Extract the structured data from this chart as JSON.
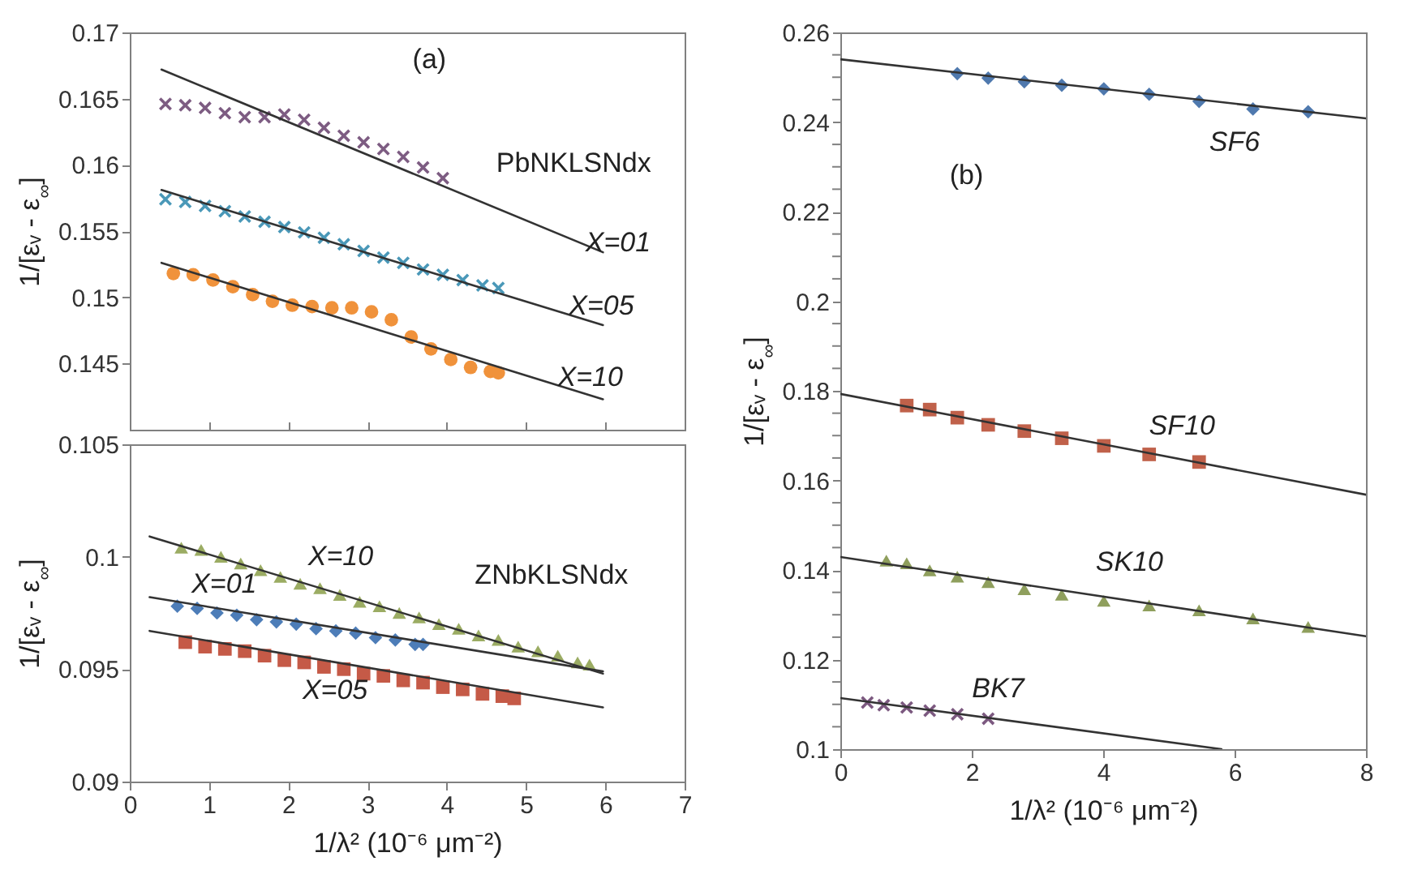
{
  "chart_data": [
    {
      "type": "scatter",
      "title": "(a)",
      "ylabel": "1/[εᵥ - ε$_{∞}$]",
      "xlim": [
        0,
        7
      ],
      "xticks": [
        0,
        1,
        2,
        3,
        4,
        5,
        6,
        7
      ],
      "ylim": [
        0.14,
        0.17
      ],
      "yticks": [
        0.145,
        0.15,
        0.155,
        0.16,
        0.165,
        0.17
      ],
      "tick_labels": "y",
      "annotations": [
        "PbNKLSNdx",
        "X=01",
        "X=05",
        "X=10"
      ],
      "series": [
        {
          "type": "scatter",
          "marker": "cross",
          "color": "#7d5c82",
          "x": [
            0.45,
            0.7,
            0.95,
            1.2,
            1.45,
            1.7,
            1.95,
            2.2,
            2.45,
            2.7,
            2.95,
            3.2,
            3.45,
            3.7,
            3.95
          ],
          "values": [
            0.1646,
            0.1645,
            0.1643,
            0.1639,
            0.1636,
            0.1636,
            0.1638,
            0.1634,
            0.1628,
            0.1622,
            0.1617,
            0.1612,
            0.1606,
            0.1598,
            0.159
          ]
        },
        {
          "type": "line",
          "color": "#333333",
          "x": [
            0.4,
            5.97
          ],
          "values": [
            0.1672,
            0.1534
          ]
        },
        {
          "type": "scatter",
          "marker": "cross",
          "color": "#4a98b8",
          "x": [
            0.45,
            0.7,
            0.95,
            1.2,
            1.45,
            1.7,
            1.95,
            2.2,
            2.45,
            2.7,
            2.95,
            3.2,
            3.45,
            3.7,
            3.95,
            4.2,
            4.45,
            4.65
          ],
          "values": [
            0.1574,
            0.1572,
            0.1569,
            0.1565,
            0.1561,
            0.1557,
            0.1553,
            0.1549,
            0.1545,
            0.154,
            0.1535,
            0.153,
            0.1526,
            0.1521,
            0.1517,
            0.1513,
            0.1509,
            0.1507
          ]
        },
        {
          "type": "line",
          "color": "#333333",
          "x": [
            0.4,
            5.97
          ],
          "values": [
            0.1581,
            0.1479
          ]
        },
        {
          "type": "scatter",
          "marker": "circle",
          "color": "#f0923b",
          "x": [
            0.55,
            0.8,
            1.05,
            1.3,
            1.55,
            1.8,
            2.05,
            2.3,
            2.55,
            2.8,
            3.05,
            3.3,
            3.55,
            3.8,
            4.05,
            4.3,
            4.55,
            4.65
          ],
          "values": [
            0.1518,
            0.1517,
            0.1513,
            0.1508,
            0.1502,
            0.1497,
            0.1494,
            0.1493,
            0.1492,
            0.1492,
            0.1489,
            0.1483,
            0.147,
            0.1461,
            0.1453,
            0.1447,
            0.1444,
            0.1443
          ]
        },
        {
          "type": "line",
          "color": "#333333",
          "x": [
            0.4,
            5.97
          ],
          "values": [
            0.1526,
            0.1423
          ]
        }
      ]
    },
    {
      "type": "scatter",
      "ylabel": "1/[εᵥ - ε$_{∞}$]",
      "xlabel": "1/λ² (10⁻⁶ μm⁻²)",
      "xlim": [
        0,
        7
      ],
      "xticks": [
        0,
        1,
        2,
        3,
        4,
        5,
        6,
        7
      ],
      "ylim": [
        0.09,
        0.105
      ],
      "yticks": [
        0.09,
        0.095,
        0.1,
        0.105
      ],
      "annotations": [
        "ZNbKLSNdx",
        "X=10",
        "X=01",
        "X=05"
      ],
      "series": [
        {
          "type": "scatter",
          "marker": "triangle",
          "color": "#9bac63",
          "x": [
            0.65,
            0.9,
            1.15,
            1.4,
            1.65,
            1.9,
            2.15,
            2.4,
            2.65,
            2.9,
            3.15,
            3.4,
            3.65,
            3.9,
            4.15,
            4.4,
            4.65,
            4.9,
            5.15,
            5.4,
            5.65,
            5.8
          ],
          "values": [
            0.1004,
            0.1003,
            0.1,
            0.0997,
            0.0994,
            0.0991,
            0.0988,
            0.0986,
            0.0983,
            0.098,
            0.0978,
            0.0975,
            0.0973,
            0.097,
            0.0968,
            0.0965,
            0.0963,
            0.096,
            0.0958,
            0.0956,
            0.0953,
            0.0952
          ]
        },
        {
          "type": "line",
          "color": "#333333",
          "x": [
            0.25,
            5.97
          ],
          "values": [
            0.1009,
            0.0948
          ]
        },
        {
          "type": "scatter",
          "marker": "diamond",
          "color": "#4d7db8",
          "x": [
            0.6,
            0.85,
            1.1,
            1.35,
            1.6,
            1.85,
            2.1,
            2.35,
            2.6,
            2.85,
            3.1,
            3.35,
            3.6,
            3.7
          ],
          "values": [
            0.0978,
            0.0977,
            0.0975,
            0.0974,
            0.0972,
            0.0971,
            0.097,
            0.0968,
            0.0967,
            0.0966,
            0.0964,
            0.0963,
            0.0961,
            0.0961
          ]
        },
        {
          "type": "line",
          "color": "#333333",
          "x": [
            0.25,
            5.97
          ],
          "values": [
            0.0982,
            0.0949
          ]
        },
        {
          "type": "scatter",
          "marker": "square",
          "color": "#c55a47",
          "x": [
            0.7,
            0.95,
            1.2,
            1.45,
            1.7,
            1.95,
            2.2,
            2.45,
            2.7,
            2.95,
            3.2,
            3.45,
            3.7,
            3.95,
            4.2,
            4.45,
            4.7,
            4.85
          ],
          "values": [
            0.0962,
            0.096,
            0.0959,
            0.0958,
            0.0956,
            0.0954,
            0.0953,
            0.0951,
            0.095,
            0.0948,
            0.0947,
            0.0945,
            0.0944,
            0.0942,
            0.0941,
            0.0939,
            0.0938,
            0.0937
          ]
        },
        {
          "type": "line",
          "color": "#333333",
          "x": [
            0.25,
            5.97
          ],
          "values": [
            0.0967,
            0.0933
          ]
        }
      ]
    },
    {
      "type": "scatter",
      "title": "(b)",
      "ylabel": "1/[εᵥ - ε$_{∞}$]",
      "xlabel": "1/λ² (10⁻⁶ μm⁻²)",
      "xlim": [
        0,
        8
      ],
      "xticks": [
        0,
        2,
        4,
        6,
        8
      ],
      "ylim": [
        0.1,
        0.26
      ],
      "yticks": [
        0.1,
        {
          "value": 0.105,
          "label": null
        },
        {
          "value": 0.11,
          "label": null
        },
        {
          "value": 0.115,
          "label": null
        },
        0.12,
        {
          "value": 0.125,
          "label": null
        },
        {
          "value": 0.13,
          "label": null
        },
        {
          "value": 0.135,
          "label": null
        },
        0.14,
        {
          "value": 0.145,
          "label": null
        },
        {
          "value": 0.15,
          "label": null
        },
        {
          "value": 0.155,
          "label": null
        },
        0.16,
        {
          "value": 0.165,
          "label": null
        },
        {
          "value": 0.17,
          "label": null
        },
        {
          "value": 0.175,
          "label": null
        },
        0.18,
        {
          "value": 0.185,
          "label": null
        },
        {
          "value": 0.19,
          "label": null
        },
        {
          "value": 0.195,
          "label": null
        },
        0.2,
        {
          "value": 0.205,
          "label": null
        },
        {
          "value": 0.21,
          "label": null
        },
        {
          "value": 0.215,
          "label": null
        },
        0.22,
        {
          "value": 0.225,
          "label": null
        },
        {
          "value": 0.23,
          "label": null
        },
        {
          "value": 0.235,
          "label": null
        },
        0.24,
        {
          "value": 0.245,
          "label": null
        },
        {
          "value": 0.25,
          "label": null
        },
        {
          "value": 0.255,
          "label": null
        },
        0.26
      ],
      "annotations": [
        "SF6",
        "SF10",
        "SK10",
        "BK7"
      ],
      "series": [
        {
          "type": "scatter",
          "marker": "diamond",
          "color": "#4f79ae",
          "x": [
            1.78,
            2.25,
            2.8,
            3.37,
            4.01,
            4.7,
            5.46,
            6.28,
            7.12
          ],
          "values": [
            0.2508,
            0.2498,
            0.249,
            0.2482,
            0.2474,
            0.2462,
            0.2446,
            0.2429,
            0.2423
          ]
        },
        {
          "type": "line",
          "color": "#333333",
          "x": [
            0,
            8
          ],
          "values": [
            0.254,
            0.2408
          ]
        },
        {
          "type": "scatter",
          "marker": "square",
          "color": "#c0614a",
          "x": [
            1.01,
            1.36,
            1.78,
            2.25,
            2.8,
            3.37,
            4.01,
            4.7,
            5.46
          ],
          "values": [
            0.1767,
            0.1758,
            0.174,
            0.1724,
            0.171,
            0.1694,
            0.1677,
            0.1658,
            0.1641
          ]
        },
        {
          "type": "line",
          "color": "#333333",
          "x": [
            0,
            8
          ],
          "values": [
            0.1793,
            0.1568
          ]
        },
        {
          "type": "scatter",
          "marker": "triangle",
          "color": "#8f9f5d",
          "x": [
            0.7,
            1.01,
            1.36,
            1.78,
            2.25,
            2.8,
            3.37,
            4.01,
            4.7,
            5.46,
            6.28,
            7.12
          ],
          "values": [
            0.1421,
            0.1415,
            0.1399,
            0.1385,
            0.1373,
            0.1357,
            0.1345,
            0.1331,
            0.1321,
            0.131,
            0.1292,
            0.1273
          ]
        },
        {
          "type": "line",
          "color": "#333333",
          "x": [
            0,
            8
          ],
          "values": [
            0.1429,
            0.1252
          ]
        },
        {
          "type": "scatter",
          "marker": "cross",
          "color": "#7c5980",
          "x": [
            0.41,
            0.66,
            1.01,
            1.36,
            1.78,
            2.25
          ],
          "values": [
            0.1104,
            0.1098,
            0.1093,
            0.1086,
            0.1078,
            0.1068
          ]
        },
        {
          "type": "line",
          "color": "#333333",
          "x": [
            0,
            5.8
          ],
          "values": [
            0.1114,
            0.1
          ]
        }
      ]
    }
  ]
}
